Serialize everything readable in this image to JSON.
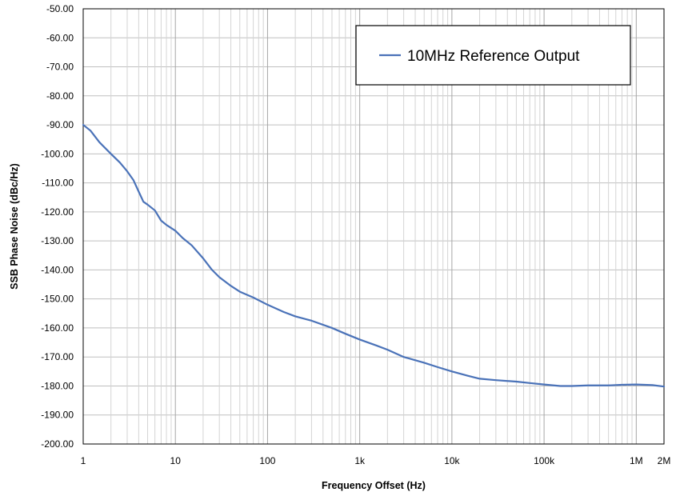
{
  "chart_data": {
    "type": "line",
    "xscale": "log",
    "xlabel": "Frequency Offset (Hz)",
    "ylabel": "SSB Phase Noise (dBc/Hz)",
    "xlim": [
      1,
      2000000
    ],
    "ylim": [
      -200,
      -50
    ],
    "grid": true,
    "legend_position": "top-right",
    "x_ticks": [
      {
        "value": 1,
        "label": "1"
      },
      {
        "value": 10,
        "label": "10"
      },
      {
        "value": 100,
        "label": "100"
      },
      {
        "value": 1000,
        "label": "1k"
      },
      {
        "value": 10000,
        "label": "10k"
      },
      {
        "value": 100000,
        "label": "100k"
      },
      {
        "value": 1000000,
        "label": "1M"
      },
      {
        "value": 2000000,
        "label": "2M"
      }
    ],
    "y_ticks": [
      {
        "value": -50,
        "label": "-50.00"
      },
      {
        "value": -60,
        "label": "-60.00"
      },
      {
        "value": -70,
        "label": "-70.00"
      },
      {
        "value": -80,
        "label": "-80.00"
      },
      {
        "value": -90,
        "label": "-90.00"
      },
      {
        "value": -100,
        "label": "-100.00"
      },
      {
        "value": -110,
        "label": "-110.00"
      },
      {
        "value": -120,
        "label": "-120.00"
      },
      {
        "value": -130,
        "label": "-130.00"
      },
      {
        "value": -140,
        "label": "-140.00"
      },
      {
        "value": -150,
        "label": "-150.00"
      },
      {
        "value": -160,
        "label": "-160.00"
      },
      {
        "value": -170,
        "label": "-170.00"
      },
      {
        "value": -180,
        "label": "-180.00"
      },
      {
        "value": -190,
        "label": "-190.00"
      },
      {
        "value": -200,
        "label": "-200.00"
      }
    ],
    "series": [
      {
        "name": "10MHz Reference Output",
        "color": "#4a72b8",
        "x": [
          1,
          1.2,
          1.5,
          2,
          2.5,
          3,
          3.5,
          4,
          4.5,
          5,
          6,
          7,
          8,
          10,
          12,
          15,
          20,
          25,
          30,
          40,
          50,
          70,
          100,
          150,
          200,
          300,
          500,
          700,
          1000,
          1500,
          2000,
          3000,
          5000,
          7000,
          10000,
          15000,
          20000,
          30000,
          50000,
          70000,
          100000,
          150000,
          200000,
          300000,
          500000,
          700000,
          1000000,
          1500000,
          2000000
        ],
        "y": [
          -90,
          -92,
          -96,
          -100,
          -103,
          -106,
          -109,
          -113,
          -116.5,
          -117.5,
          -119.5,
          -123,
          -124.5,
          -126.5,
          -129,
          -131.5,
          -136,
          -140,
          -142.5,
          -145.5,
          -147.5,
          -149.5,
          -152,
          -154.5,
          -156,
          -157.5,
          -160,
          -162,
          -164,
          -166,
          -167.5,
          -170,
          -172,
          -173.5,
          -175,
          -176.5,
          -177.5,
          -178,
          -178.5,
          -179,
          -179.5,
          -180,
          -180,
          -179.8,
          -179.8,
          -179.6,
          -179.5,
          -179.7,
          -180.2
        ]
      }
    ]
  }
}
